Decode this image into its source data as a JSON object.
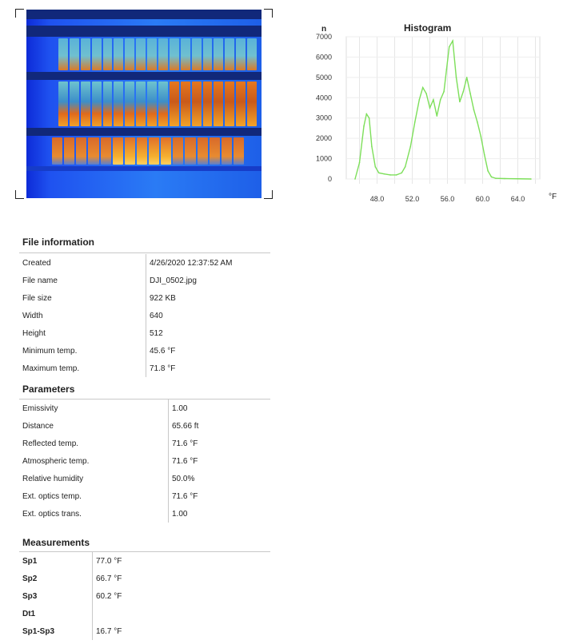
{
  "thermal_image": {
    "description_icon": "thermal-image"
  },
  "histogram": {
    "title": "Histogram",
    "y_label": "n",
    "unit": "°F",
    "y_ticks": [
      "7000",
      "6000",
      "5000",
      "4000",
      "3000",
      "2000",
      "1000",
      "0"
    ],
    "x_ticks": [
      "48.0",
      "52.0",
      "56.0",
      "60.0",
      "64.0"
    ],
    "line_color": "#7ddf5a"
  },
  "chart_data": {
    "type": "line",
    "title": "Histogram",
    "ylabel": "n",
    "xlabel": "°F",
    "xlim": [
      44.5,
      66.5
    ],
    "ylim": [
      0,
      7000
    ],
    "grid": true,
    "x": [
      45.5,
      46.0,
      46.5,
      46.8,
      47.1,
      47.4,
      47.8,
      48.2,
      48.8,
      49.5,
      50.2,
      50.8,
      51.2,
      51.8,
      52.3,
      52.8,
      53.2,
      53.6,
      54.0,
      54.4,
      54.8,
      55.2,
      55.6,
      55.9,
      56.2,
      56.6,
      57.0,
      57.4,
      57.8,
      58.2,
      58.6,
      59.0,
      59.4,
      59.8,
      60.2,
      60.6,
      61.0,
      61.5,
      62.5,
      64.0,
      65.5
    ],
    "values": [
      0,
      800,
      2600,
      3200,
      3000,
      1600,
      600,
      300,
      250,
      200,
      200,
      300,
      600,
      1600,
      2800,
      3900,
      4500,
      4200,
      3500,
      3900,
      3100,
      3900,
      4300,
      5400,
      6500,
      6800,
      5000,
      3800,
      4300,
      5000,
      4200,
      3400,
      2800,
      2100,
      1200,
      400,
      100,
      30,
      20,
      10,
      0
    ]
  },
  "file_information": {
    "title": "File information",
    "rows": [
      {
        "label": "Created",
        "value": "4/26/2020 12:37:52 AM"
      },
      {
        "label": "File name",
        "value": "DJI_0502.jpg"
      },
      {
        "label": "File size",
        "value": "922 KB"
      },
      {
        "label": "Width",
        "value": "640"
      },
      {
        "label": "Height",
        "value": "512"
      },
      {
        "label": "Minimum temp.",
        "value": "45.6 °F"
      },
      {
        "label": "Maximum temp.",
        "value": "71.8 °F"
      }
    ]
  },
  "parameters": {
    "title": "Parameters",
    "rows": [
      {
        "label": "Emissivity",
        "value": "1.00"
      },
      {
        "label": "Distance",
        "value": "65.66 ft"
      },
      {
        "label": "Reflected temp.",
        "value": "71.6 °F"
      },
      {
        "label": "Atmospheric temp.",
        "value": "71.6 °F"
      },
      {
        "label": "Relative humidity",
        "value": "50.0%"
      },
      {
        "label": "Ext. optics temp.",
        "value": "71.6 °F"
      },
      {
        "label": "Ext. optics trans.",
        "value": "1.00"
      }
    ]
  },
  "measurements": {
    "title": "Measurements",
    "rows": [
      {
        "label": "Sp1",
        "value": "77.0 °F"
      },
      {
        "label": "Sp2",
        "value": "66.7 °F"
      },
      {
        "label": "Sp3",
        "value": "60.2 °F"
      },
      {
        "label": "Dt1",
        "value": ""
      },
      {
        "label": "Sp1-Sp3",
        "value": "16.7 °F"
      }
    ]
  }
}
